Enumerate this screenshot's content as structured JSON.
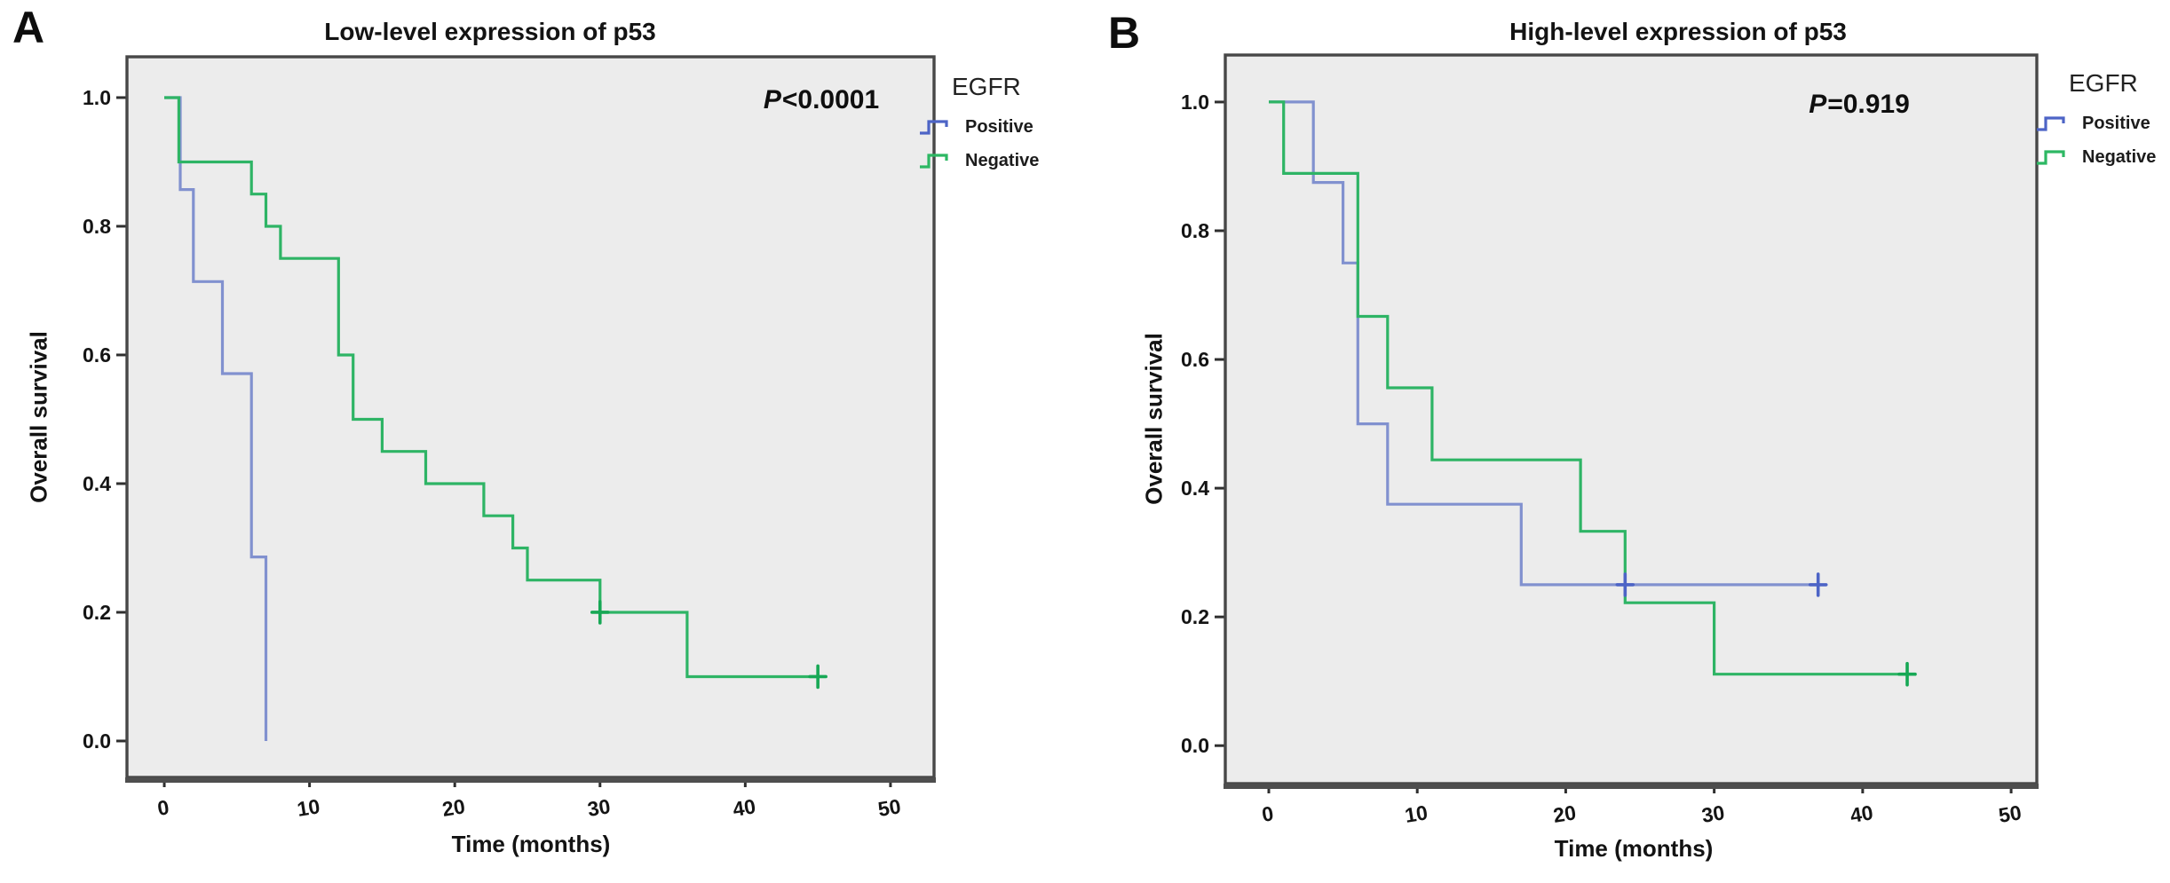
{
  "figure": {
    "background": "#ffffff"
  },
  "chart_data": [
    {
      "panel": "A",
      "type": "line",
      "step": true,
      "title": "Low-level expression of p53",
      "p_label": {
        "variable": "P",
        "rest": "<0.0001"
      },
      "xlabel": "Time (months)",
      "ylabel": "Overall survival",
      "background": "#ececec",
      "x_axis": {
        "range": [
          -2.57,
          53.0
        ],
        "ticks": [
          {
            "value": 0,
            "label": "0"
          },
          {
            "value": 10,
            "label": "10"
          },
          {
            "value": 20,
            "label": "20"
          },
          {
            "value": 30,
            "label": "30"
          },
          {
            "value": 40,
            "label": "40"
          },
          {
            "value": 50,
            "label": "50"
          }
        ]
      },
      "y_axis": {
        "range": [
          -0.0566,
          1.0634
        ],
        "ticks": [
          {
            "value": 0.0,
            "label": "0.0"
          },
          {
            "value": 0.2,
            "label": "0.2"
          },
          {
            "value": 0.4,
            "label": "0.4"
          },
          {
            "value": 0.6,
            "label": "0.6"
          },
          {
            "value": 0.8,
            "label": "0.8"
          },
          {
            "value": 1.0,
            "label": "1.0"
          }
        ]
      },
      "legend": {
        "title": "EGFR",
        "entries": [
          {
            "label": "Positive",
            "color": "#4d64c6"
          },
          {
            "label": "Negative",
            "color": "#2db863"
          }
        ]
      },
      "series": [
        {
          "name": "Positive",
          "color": "#8191cf",
          "censor_color": "#4d64c6",
          "steps": [
            [
              0,
              1.0
            ],
            [
              1.1,
              1.0
            ],
            [
              1.1,
              0.857
            ],
            [
              2,
              0.857
            ],
            [
              2,
              0.714
            ],
            [
              4,
              0.714
            ],
            [
              4,
              0.571
            ],
            [
              6,
              0.571
            ],
            [
              6,
              0.286
            ],
            [
              7,
              0.286
            ],
            [
              7,
              0.0
            ]
          ],
          "censors": []
        },
        {
          "name": "Negative",
          "color": "#2eb465",
          "censor_color": "#17a855",
          "steps": [
            [
              0,
              1.0
            ],
            [
              1,
              1.0
            ],
            [
              1,
              0.9
            ],
            [
              6,
              0.9
            ],
            [
              6,
              0.85
            ],
            [
              7,
              0.85
            ],
            [
              7,
              0.8
            ],
            [
              8,
              0.8
            ],
            [
              8,
              0.75
            ],
            [
              12,
              0.75
            ],
            [
              12,
              0.6
            ],
            [
              13,
              0.6
            ],
            [
              13,
              0.5
            ],
            [
              15,
              0.5
            ],
            [
              15,
              0.45
            ],
            [
              18,
              0.45
            ],
            [
              18,
              0.4
            ],
            [
              22,
              0.4
            ],
            [
              22,
              0.35
            ],
            [
              24,
              0.35
            ],
            [
              24,
              0.3
            ],
            [
              25,
              0.3
            ],
            [
              25,
              0.25
            ],
            [
              30,
              0.25
            ],
            [
              30,
              0.2
            ],
            [
              36,
              0.2
            ],
            [
              36,
              0.1
            ],
            [
              45,
              0.1
            ]
          ],
          "censors": [
            [
              30,
              0.2
            ],
            [
              45,
              0.1
            ]
          ]
        }
      ]
    },
    {
      "panel": "B",
      "type": "line",
      "step": true,
      "title": "High-level expression of p53",
      "p_label": {
        "variable": "P",
        "rest": "=0.919"
      },
      "xlabel": "Time (months)",
      "ylabel": "Overall survival",
      "background": "#ececec",
      "x_axis": {
        "range": [
          -2.93,
          51.73
        ],
        "ticks": [
          {
            "value": 0,
            "label": "0"
          },
          {
            "value": 10,
            "label": "10"
          },
          {
            "value": 20,
            "label": "20"
          },
          {
            "value": 30,
            "label": "30"
          },
          {
            "value": 40,
            "label": "40"
          },
          {
            "value": 50,
            "label": "50"
          }
        ]
      },
      "y_axis": {
        "range": [
          -0.059,
          1.073
        ],
        "ticks": [
          {
            "value": 0.0,
            "label": "0.0"
          },
          {
            "value": 0.2,
            "label": "0.2"
          },
          {
            "value": 0.4,
            "label": "0.4"
          },
          {
            "value": 0.6,
            "label": "0.6"
          },
          {
            "value": 0.8,
            "label": "0.8"
          },
          {
            "value": 1.0,
            "label": "1.0"
          }
        ]
      },
      "legend": {
        "title": "EGFR",
        "entries": [
          {
            "label": "Positive",
            "color": "#4d64c6"
          },
          {
            "label": "Negative",
            "color": "#2db863"
          }
        ]
      },
      "series": [
        {
          "name": "Positive",
          "color": "#8191cf",
          "censor_color": "#4d64c6",
          "steps": [
            [
              0,
              1.0
            ],
            [
              3,
              1.0
            ],
            [
              3,
              0.875
            ],
            [
              5,
              0.875
            ],
            [
              5,
              0.75
            ],
            [
              6,
              0.75
            ],
            [
              6,
              0.5
            ],
            [
              8,
              0.5
            ],
            [
              8,
              0.375
            ],
            [
              17,
              0.375
            ],
            [
              17,
              0.25
            ],
            [
              37,
              0.25
            ]
          ],
          "censors": [
            [
              24,
              0.25
            ],
            [
              37,
              0.25
            ]
          ]
        },
        {
          "name": "Negative",
          "color": "#2eb465",
          "censor_color": "#17a855",
          "steps": [
            [
              0,
              1.0
            ],
            [
              1,
              1.0
            ],
            [
              1,
              0.889
            ],
            [
              6,
              0.889
            ],
            [
              6,
              0.667
            ],
            [
              8,
              0.667
            ],
            [
              8,
              0.556
            ],
            [
              11,
              0.556
            ],
            [
              11,
              0.444
            ],
            [
              21,
              0.444
            ],
            [
              21,
              0.333
            ],
            [
              24,
              0.333
            ],
            [
              24,
              0.222
            ],
            [
              30,
              0.222
            ],
            [
              30,
              0.111
            ],
            [
              43,
              0.111
            ]
          ],
          "censors": [
            [
              43,
              0.111
            ]
          ]
        }
      ]
    }
  ]
}
